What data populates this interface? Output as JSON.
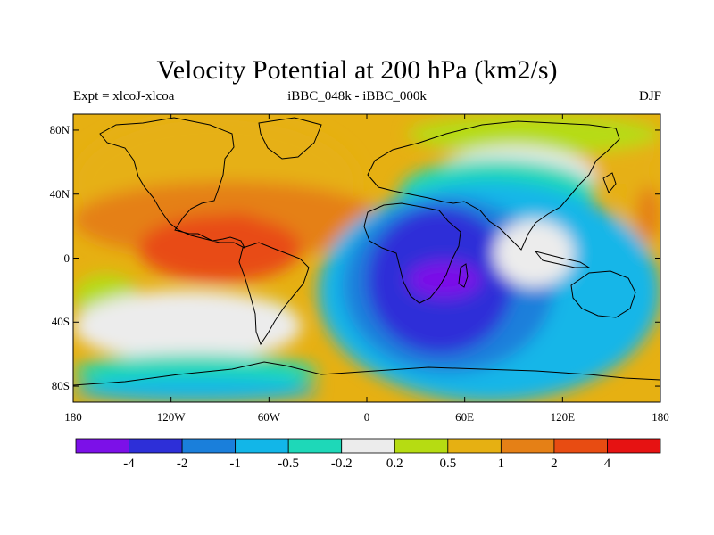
{
  "header": {
    "title": "Velocity Potential at 200 hPa (km2/s)",
    "left": "Expt = xlcoJ-xlcoa",
    "center": "iBBC_048k - iBBC_000k",
    "right": "DJF"
  },
  "map": {
    "projection": "cylindrical-equidistant",
    "lon_range": [
      -180,
      180
    ],
    "lat_range": [
      -90,
      90
    ],
    "y_ticks": [
      {
        "lat": 80,
        "label": "80N"
      },
      {
        "lat": 40,
        "label": "40N"
      },
      {
        "lat": 0,
        "label": "0"
      },
      {
        "lat": -40,
        "label": "40S"
      },
      {
        "lat": -80,
        "label": "80S"
      }
    ],
    "x_ticks": [
      {
        "lon": -180,
        "label": "180"
      },
      {
        "lon": -120,
        "label": "120W"
      },
      {
        "lon": -60,
        "label": "60W"
      },
      {
        "lon": 0,
        "label": "0"
      },
      {
        "lon": 60,
        "label": "60E"
      },
      {
        "lon": 120,
        "label": "120E"
      },
      {
        "lon": 180,
        "label": "180"
      }
    ],
    "background_color": "#e0e0e0"
  },
  "colorbar": {
    "colors": [
      "#7c10e8",
      "#2d2fd8",
      "#1a7fdb",
      "#12b6e8",
      "#1ed8b8",
      "#ececec",
      "#b6dc12",
      "#e6b012",
      "#e58016",
      "#e84c12",
      "#e61212"
    ],
    "labels": [
      "-4",
      "-2",
      "-1",
      "-0.5",
      "-0.2",
      "0.2",
      "0.5",
      "1",
      "2",
      "4"
    ]
  },
  "field": {
    "bands": [
      {
        "level": 5,
        "color": "#e6b012",
        "regions": [
          {
            "lon_min": -180,
            "lon_max": -5,
            "lat_min": 5,
            "lat_max": 90
          },
          {
            "lon_min": 100,
            "lon_max": 180,
            "lat_min": 45,
            "lat_max": 90
          },
          {
            "lon_min": 155,
            "lon_max": 180,
            "lat_min": 0,
            "lat_max": 60
          }
        ]
      },
      {
        "level": 6,
        "color": "#b6dc12",
        "regions": [
          {
            "lon_min": 25,
            "lon_max": 180,
            "lat_min": 65,
            "lat_max": 90
          },
          {
            "lon_min": -180,
            "lon_max": -140,
            "lat_min": -38,
            "lat_max": -10
          },
          {
            "lon_min": -95,
            "lon_max": -45,
            "lat_min": -45,
            "lat_max": -25
          }
        ]
      },
      {
        "level": 7,
        "color": "#e58016",
        "regions": [
          {
            "lon_min": -180,
            "lon_max": 10,
            "lat_min": 0,
            "lat_max": 48
          },
          {
            "lon_min": 165,
            "lon_max": 180,
            "lat_min": 10,
            "lat_max": 45
          }
        ]
      },
      {
        "level": 8,
        "color": "#e84c12",
        "regions": [
          {
            "lon_min": -140,
            "lon_max": -40,
            "lat_min": -15,
            "lat_max": 27
          },
          {
            "lon_min": -100,
            "lon_max": -60,
            "lat_min": 3,
            "lat_max": 28
          }
        ]
      },
      {
        "level": 4,
        "color": "#ececec",
        "regions": [
          {
            "lon_min": -180,
            "lon_max": -40,
            "lat_min": -65,
            "lat_max": -20
          },
          {
            "lon_min": 40,
            "lon_max": 140,
            "lat_min": 30,
            "lat_max": 70
          }
        ]
      },
      {
        "level": 3,
        "color": "#1ed8b8",
        "regions": [
          {
            "lon_min": -180,
            "lon_max": -30,
            "lat_min": -82,
            "lat_max": -60
          },
          {
            "lon_min": 20,
            "lon_max": 140,
            "lat_min": 20,
            "lat_max": 62
          }
        ]
      },
      {
        "level": 2,
        "color": "#12b6e8",
        "regions": [
          {
            "lon_min": -30,
            "lon_max": 180,
            "lat_min": -90,
            "lat_max": 48
          },
          {
            "lon_min": -180,
            "lon_max": -30,
            "lat_min": -90,
            "lat_max": -75
          }
        ]
      },
      {
        "level": 1,
        "color": "#1a7fdb",
        "regions": [
          {
            "lon_min": -15,
            "lon_max": 115,
            "lat_min": -72,
            "lat_max": 38
          }
        ]
      },
      {
        "level": 0,
        "color": "#2d2fd8",
        "regions": [
          {
            "lon_min": 0,
            "lon_max": 90,
            "lat_min": -60,
            "lat_max": 32
          }
        ]
      },
      {
        "level": -1,
        "color": "#7c10e8",
        "regions": [
          {
            "lon_min": 25,
            "lon_max": 70,
            "lat_min": -25,
            "lat_max": -2
          }
        ]
      },
      {
        "level": 9,
        "color": "#e58016",
        "regions": [
          {
            "lon_min": 85,
            "lon_max": 120,
            "lat_min": -15,
            "lat_max": 20
          }
        ]
      },
      {
        "level": 10,
        "color": "#ececec",
        "regions": [
          {
            "lon_min": 78,
            "lon_max": 127,
            "lat_min": -18,
            "lat_max": 24
          }
        ]
      }
    ]
  }
}
